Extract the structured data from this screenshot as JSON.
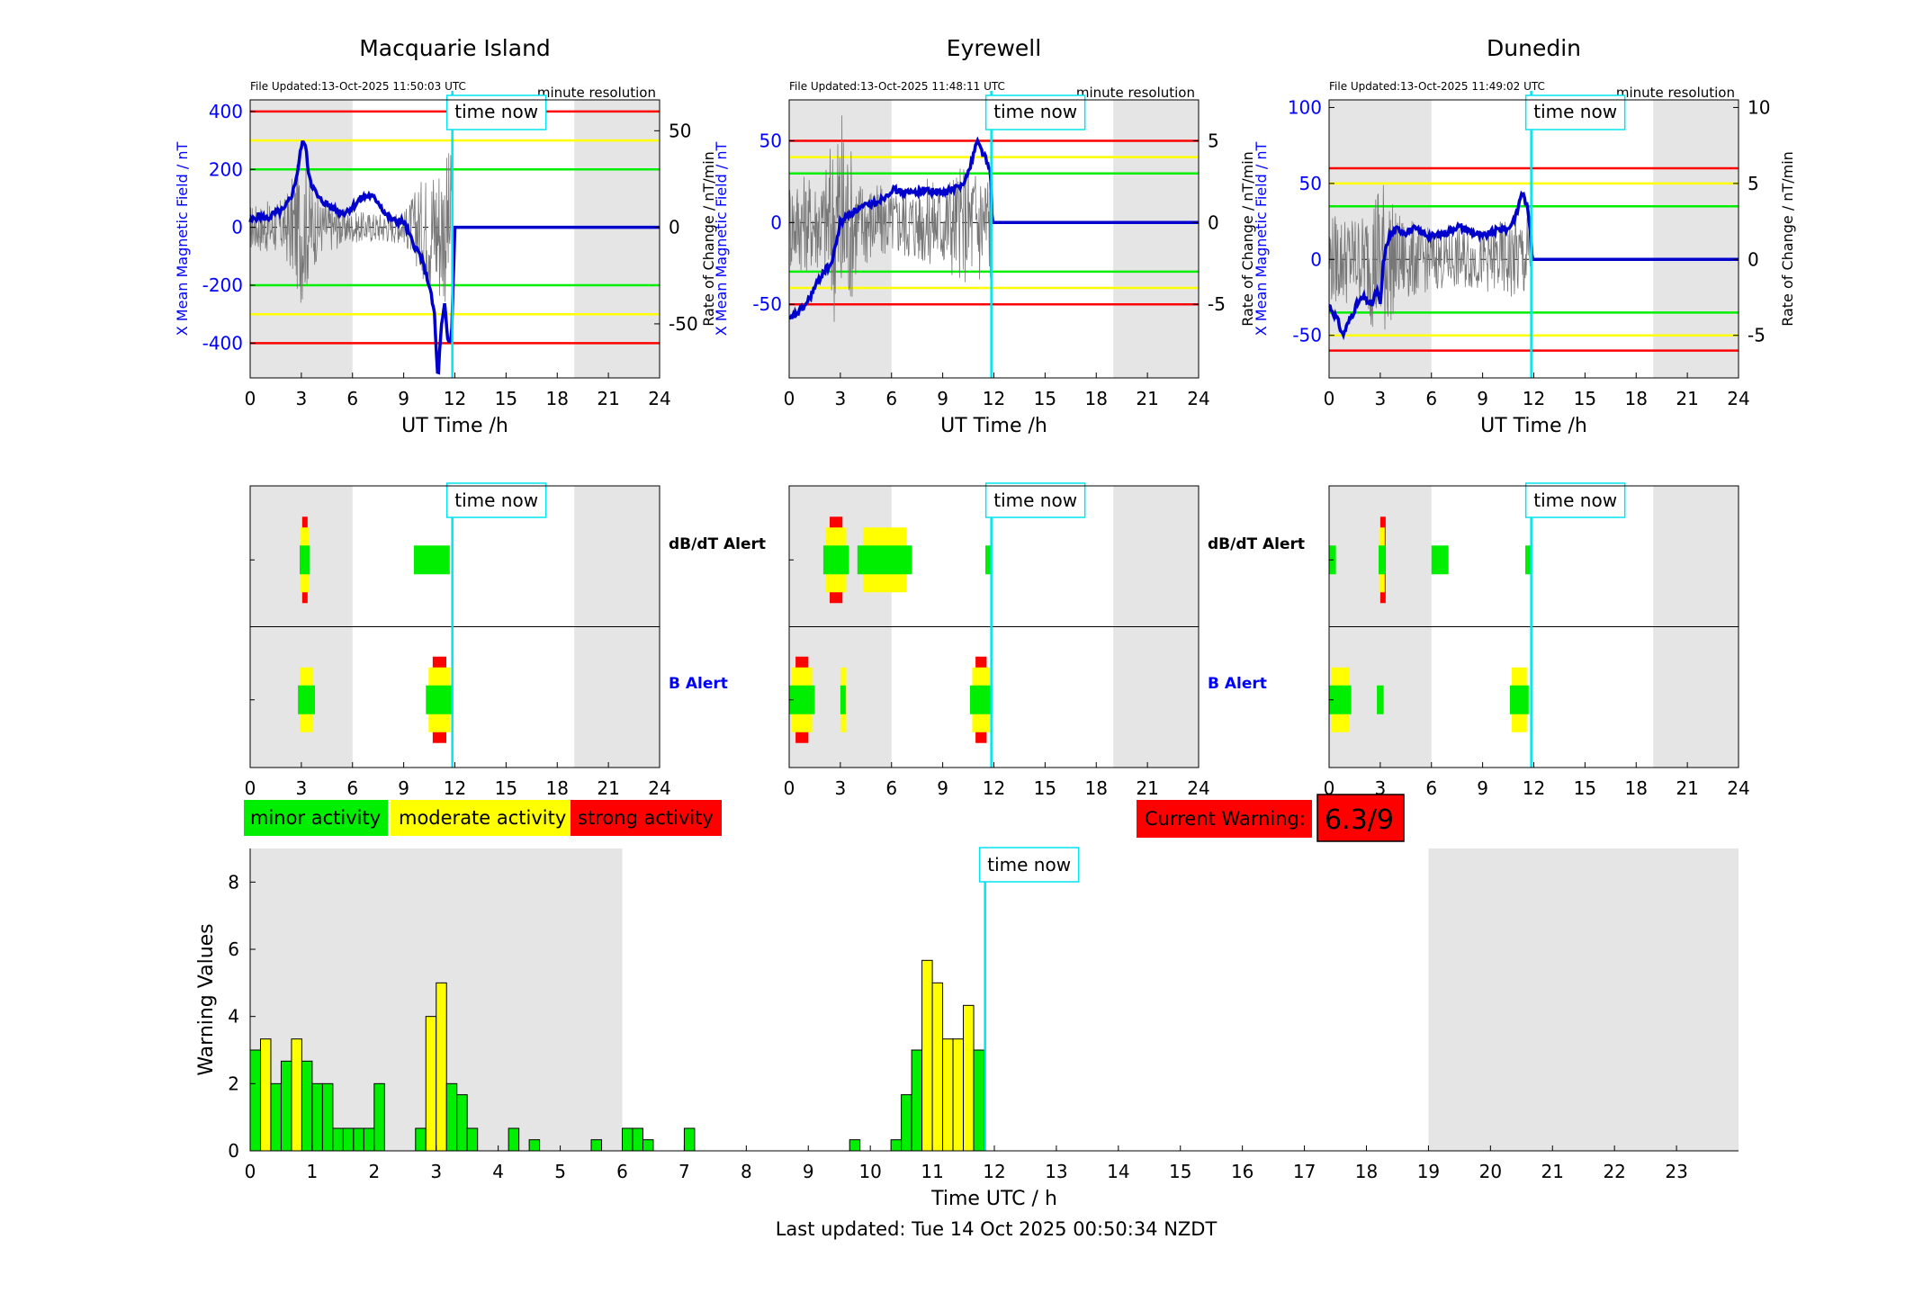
{
  "colors": {
    "green": "#00ee00",
    "yellow": "#ffff00",
    "red": "#ff0000",
    "blue": "#0000cc",
    "cyan": "#00e5ee",
    "shade": "#e5e5e5",
    "axisBlue": "#0000ff"
  },
  "now_hour": 11.85,
  "shade_ranges": [
    [
      0,
      6
    ],
    [
      19,
      24
    ]
  ],
  "stations": [
    {
      "name": "Macquarie Island",
      "file_updated": "File Updated:13-Oct-2025 11:50:03 UTC",
      "resolution": "minute resolution",
      "ylabel_left": "X Mean Magnetic Field / nT",
      "ylabel_right": "Rate of Change / nT/min",
      "ylim_left": [
        -520,
        440
      ],
      "yticks_left": [
        -400,
        -200,
        0,
        200,
        400
      ],
      "ylim_right": [
        -78,
        66
      ],
      "yticks_right": [
        -50,
        0,
        50
      ],
      "thresholds": {
        "red": 400,
        "yellow": 300,
        "green": 200
      },
      "field_trace": [
        [
          0,
          20
        ],
        [
          0.5,
          40
        ],
        [
          1,
          30
        ],
        [
          1.5,
          50
        ],
        [
          2,
          60
        ],
        [
          2.5,
          120
        ],
        [
          2.8,
          200
        ],
        [
          3.0,
          280
        ],
        [
          3.2,
          300
        ],
        [
          3.4,
          200
        ],
        [
          3.6,
          150
        ],
        [
          4,
          100
        ],
        [
          4.5,
          80
        ],
        [
          5,
          60
        ],
        [
          5.5,
          50
        ],
        [
          6,
          70
        ],
        [
          6.5,
          100
        ],
        [
          7,
          110
        ],
        [
          7.5,
          90
        ],
        [
          8,
          40
        ],
        [
          8.5,
          20
        ],
        [
          9,
          20
        ],
        [
          9.5,
          -50
        ],
        [
          10,
          -100
        ],
        [
          10.5,
          -200
        ],
        [
          10.8,
          -300
        ],
        [
          11.0,
          -530
        ],
        [
          11.2,
          -350
        ],
        [
          11.4,
          -270
        ],
        [
          11.6,
          -400
        ],
        [
          11.8,
          -380
        ],
        [
          12,
          0
        ],
        [
          24,
          0
        ]
      ],
      "rate_jitter_amp": [
        [
          0,
          12
        ],
        [
          2,
          15
        ],
        [
          3,
          40
        ],
        [
          4,
          15
        ],
        [
          6,
          8
        ],
        [
          9,
          8
        ],
        [
          10,
          25
        ],
        [
          11,
          40
        ],
        [
          11.8,
          40
        ]
      ],
      "dbdt_alerts": [
        {
          "start": 2.9,
          "end": 3.5,
          "level": "red"
        },
        {
          "start": 9.6,
          "end": 11.7,
          "level": "green"
        }
      ],
      "b_alerts": [
        {
          "start": 2.8,
          "end": 3.8,
          "level": "yellow"
        },
        {
          "start": 10.3,
          "end": 11.9,
          "level": "red"
        }
      ],
      "dbdt_label": "dB/dT Alert",
      "b_label": "B Alert"
    },
    {
      "name": "Eyrewell",
      "file_updated": "File Updated:13-Oct-2025 11:48:11 UTC",
      "resolution": "minute resolution",
      "ylabel_left": "X Mean Magnetic Field / nT",
      "ylabel_right": "Rate of Change / nT/min",
      "ylim_left": [
        -95,
        75
      ],
      "yticks_left": [
        -50,
        0,
        50
      ],
      "ylim_right": [
        -9.5,
        7.5
      ],
      "yticks_right": [
        -5,
        0,
        5
      ],
      "thresholds": {
        "red": 50,
        "yellow": 40,
        "green": 30
      },
      "field_trace": [
        [
          0,
          -60
        ],
        [
          0.5,
          -55
        ],
        [
          1,
          -50
        ],
        [
          1.5,
          -40
        ],
        [
          2,
          -30
        ],
        [
          2.5,
          -25
        ],
        [
          3,
          0
        ],
        [
          3.5,
          5
        ],
        [
          4,
          8
        ],
        [
          4.5,
          10
        ],
        [
          5,
          12
        ],
        [
          5.5,
          15
        ],
        [
          6,
          20
        ],
        [
          7,
          18
        ],
        [
          8,
          20
        ],
        [
          9,
          18
        ],
        [
          9.5,
          20
        ],
        [
          10,
          22
        ],
        [
          10.5,
          30
        ],
        [
          11,
          50
        ],
        [
          11.5,
          40
        ],
        [
          11.8,
          30
        ],
        [
          11.9,
          0
        ],
        [
          24,
          0
        ]
      ],
      "rate_jitter_amp": [
        [
          0,
          3
        ],
        [
          2,
          3
        ],
        [
          3,
          8
        ],
        [
          4,
          3
        ],
        [
          6,
          2
        ],
        [
          9,
          3
        ],
        [
          11,
          4
        ],
        [
          11.8,
          4
        ]
      ],
      "dbdt_alerts": [
        {
          "start": 2.0,
          "end": 3.5,
          "level": "red"
        },
        {
          "start": 4.0,
          "end": 7.2,
          "level": "yellow"
        },
        {
          "start": 11.5,
          "end": 11.8,
          "level": "green"
        }
      ],
      "b_alerts": [
        {
          "start": 0.0,
          "end": 1.5,
          "level": "red"
        },
        {
          "start": 3.0,
          "end": 3.3,
          "level": "yellow"
        },
        {
          "start": 10.6,
          "end": 11.9,
          "level": "red"
        }
      ],
      "dbdt_label": "dB/dT Alert",
      "b_label": "B Alert"
    },
    {
      "name": "Dunedin",
      "file_updated": "File Updated:13-Oct-2025 11:49:02 UTC",
      "resolution": "minute resolution",
      "ylabel_left": "X Mean Magnetic Field / nT",
      "ylabel_right": "Rate of Change / nT/min",
      "ylim_left": [
        -78,
        105
      ],
      "yticks_left": [
        -50,
        0,
        50,
        100
      ],
      "ylim_right": [
        -7.8,
        10.5
      ],
      "yticks_right": [
        -5,
        0,
        5,
        10
      ],
      "thresholds": {
        "red": 60,
        "yellow": 50,
        "green": 35
      },
      "field_trace": [
        [
          0,
          -30
        ],
        [
          0.5,
          -40
        ],
        [
          0.8,
          -50
        ],
        [
          1.2,
          -40
        ],
        [
          1.6,
          -30
        ],
        [
          2,
          -25
        ],
        [
          2.5,
          -30
        ],
        [
          2.8,
          -20
        ],
        [
          3,
          -30
        ],
        [
          3.2,
          0
        ],
        [
          3.5,
          15
        ],
        [
          4,
          20
        ],
        [
          4.5,
          18
        ],
        [
          5,
          20
        ],
        [
          6,
          15
        ],
        [
          7,
          18
        ],
        [
          7.5,
          22
        ],
        [
          8,
          20
        ],
        [
          9,
          15
        ],
        [
          10,
          20
        ],
        [
          10.5,
          20
        ],
        [
          11,
          30
        ],
        [
          11.3,
          45
        ],
        [
          11.6,
          35
        ],
        [
          11.8,
          20
        ],
        [
          11.9,
          0
        ],
        [
          24,
          0
        ]
      ],
      "rate_jitter_amp": [
        [
          0,
          3
        ],
        [
          2,
          3
        ],
        [
          3,
          6
        ],
        [
          4,
          3
        ],
        [
          6,
          2
        ],
        [
          9,
          2
        ],
        [
          11,
          3
        ],
        [
          11.8,
          3
        ]
      ],
      "dbdt_alerts": [
        {
          "start": 0.0,
          "end": 0.4,
          "level": "green"
        },
        {
          "start": 2.9,
          "end": 3.3,
          "level": "red"
        },
        {
          "start": 6.0,
          "end": 7.0,
          "level": "green"
        },
        {
          "start": 11.5,
          "end": 11.8,
          "level": "green"
        }
      ],
      "b_alerts": [
        {
          "start": 0.0,
          "end": 1.3,
          "level": "yellow"
        },
        {
          "start": 2.8,
          "end": 3.2,
          "level": "green"
        },
        {
          "start": 10.6,
          "end": 11.7,
          "level": "yellow"
        }
      ],
      "dbdt_label": "dB/dT Alert",
      "b_label": "B Alert"
    }
  ],
  "time_now_label": "time now",
  "xlabel_top": "UT Time /h",
  "hour_ticks": [
    0,
    3,
    6,
    9,
    12,
    15,
    18,
    21,
    24
  ],
  "legend": {
    "minor": "minor activity",
    "moderate": "moderate activity",
    "strong": "strong activity"
  },
  "current_warning": {
    "label": "Current Warning:",
    "value": "6.3/9"
  },
  "chart_data": {
    "type": "bar",
    "ylabel": "Warning Values",
    "xlabel": "Time UTC / h",
    "ylim": [
      0,
      9
    ],
    "yticks": [
      0,
      2,
      4,
      6,
      8
    ],
    "xlim": [
      0,
      24
    ],
    "xticks": [
      0,
      1,
      2,
      3,
      4,
      5,
      6,
      7,
      8,
      9,
      10,
      11,
      12,
      13,
      14,
      15,
      16,
      17,
      18,
      19,
      20,
      21,
      22,
      23
    ],
    "bin_width": 0.1667,
    "bars": [
      {
        "x": 0.0,
        "value": 3.0,
        "level": "green"
      },
      {
        "x": 0.1667,
        "value": 3.33,
        "level": "yellow"
      },
      {
        "x": 0.3333,
        "value": 2.0,
        "level": "green"
      },
      {
        "x": 0.5,
        "value": 2.67,
        "level": "green"
      },
      {
        "x": 0.6667,
        "value": 3.33,
        "level": "yellow"
      },
      {
        "x": 0.8333,
        "value": 2.67,
        "level": "green"
      },
      {
        "x": 1.0,
        "value": 2.0,
        "level": "green"
      },
      {
        "x": 1.1667,
        "value": 2.0,
        "level": "green"
      },
      {
        "x": 1.3333,
        "value": 0.67,
        "level": "green"
      },
      {
        "x": 1.5,
        "value": 0.67,
        "level": "green"
      },
      {
        "x": 1.6667,
        "value": 0.67,
        "level": "green"
      },
      {
        "x": 1.8333,
        "value": 0.67,
        "level": "green"
      },
      {
        "x": 2.0,
        "value": 2.0,
        "level": "green"
      },
      {
        "x": 2.6667,
        "value": 0.67,
        "level": "green"
      },
      {
        "x": 2.8333,
        "value": 4.0,
        "level": "yellow"
      },
      {
        "x": 3.0,
        "value": 5.0,
        "level": "yellow"
      },
      {
        "x": 3.1667,
        "value": 2.0,
        "level": "green"
      },
      {
        "x": 3.3333,
        "value": 1.67,
        "level": "green"
      },
      {
        "x": 3.5,
        "value": 0.67,
        "level": "green"
      },
      {
        "x": 4.1667,
        "value": 0.67,
        "level": "green"
      },
      {
        "x": 4.5,
        "value": 0.33,
        "level": "green"
      },
      {
        "x": 5.5,
        "value": 0.33,
        "level": "green"
      },
      {
        "x": 6.0,
        "value": 0.67,
        "level": "green"
      },
      {
        "x": 6.1667,
        "value": 0.67,
        "level": "green"
      },
      {
        "x": 6.3333,
        "value": 0.33,
        "level": "green"
      },
      {
        "x": 7.0,
        "value": 0.67,
        "level": "green"
      },
      {
        "x": 9.6667,
        "value": 0.33,
        "level": "green"
      },
      {
        "x": 10.3333,
        "value": 0.33,
        "level": "green"
      },
      {
        "x": 10.5,
        "value": 1.67,
        "level": "green"
      },
      {
        "x": 10.6667,
        "value": 3.0,
        "level": "green"
      },
      {
        "x": 10.8333,
        "value": 5.67,
        "level": "yellow"
      },
      {
        "x": 11.0,
        "value": 5.0,
        "level": "yellow"
      },
      {
        "x": 11.1667,
        "value": 3.33,
        "level": "yellow"
      },
      {
        "x": 11.3333,
        "value": 3.33,
        "level": "yellow"
      },
      {
        "x": 11.5,
        "value": 4.33,
        "level": "yellow"
      },
      {
        "x": 11.6667,
        "value": 3.0,
        "level": "green"
      }
    ]
  },
  "last_updated": "Last updated: Tue 14 Oct 2025 00:50:34 NZDT"
}
